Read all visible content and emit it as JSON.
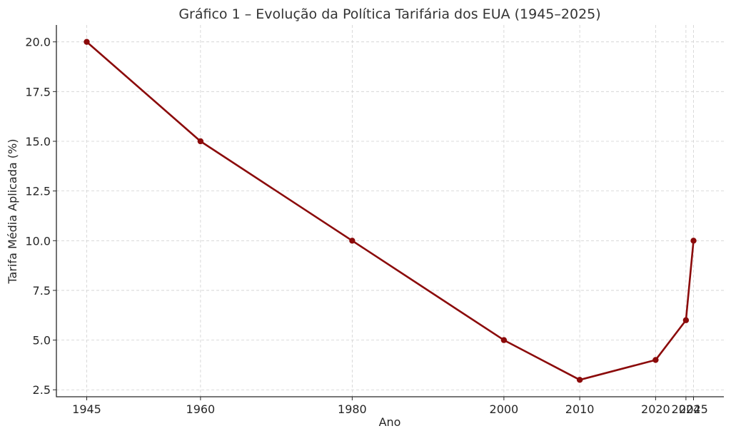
{
  "chart_data": {
    "type": "line",
    "title": "Gráfico 1 – Evolução da Política Tarifária dos EUA (1945–2025)",
    "xlabel": "Ano",
    "ylabel": "Tarifa Média Aplicada (%)",
    "x": [
      1945,
      1960,
      1980,
      2000,
      2010,
      2020,
      2024,
      2025
    ],
    "xtick_labels": [
      "1945",
      "1960",
      "1980",
      "2000",
      "2010",
      "2020",
      "2024",
      "2025"
    ],
    "yticks": [
      2.5,
      5.0,
      7.5,
      10.0,
      12.5,
      15.0,
      17.5,
      20.0
    ],
    "ytick_labels": [
      "2.5",
      "5.0",
      "7.5",
      "10.0",
      "12.5",
      "15.0",
      "17.5",
      "20.0"
    ],
    "xlim": [
      1941,
      2029
    ],
    "ylim": [
      2.15,
      20.85
    ],
    "grid": true,
    "series": [
      {
        "color": "#8b0a0a",
        "values": [
          20,
          15,
          10,
          5,
          3,
          4,
          6,
          10
        ]
      }
    ]
  }
}
